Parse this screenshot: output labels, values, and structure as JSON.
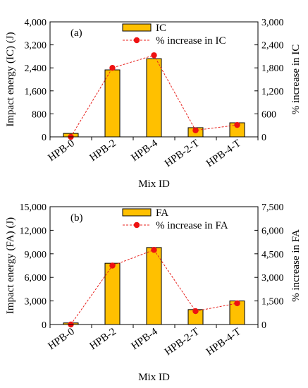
{
  "colors": {
    "bar_fill": "#FFC000",
    "bar_stroke": "#000000",
    "line": "#E8231F",
    "marker": "#EE1111",
    "axis": "#000000"
  },
  "chart_data": [
    {
      "type": "bar",
      "panel_label": "(a)",
      "categories": [
        "HPB-0",
        "HPB-2",
        "HPB-4",
        "HPB-2-T",
        "HPB-4-T"
      ],
      "xlabel": "Mix ID",
      "ylabel": "Impact energy (IC) (J)",
      "y2label": "% increase in IC",
      "ylim": [
        0,
        4000
      ],
      "y2lim": [
        0,
        3000
      ],
      "yticks": [
        "0",
        "800",
        "1,600",
        "2,400",
        "3,200",
        "4,000"
      ],
      "y2ticks": [
        "0",
        "600",
        "1,200",
        "1,800",
        "2,400",
        "3,000"
      ],
      "grid": false,
      "legend_position": "top-center",
      "series": [
        {
          "name": "IC",
          "kind": "bar",
          "axis": "left",
          "values": [
            120,
            2330,
            2720,
            320,
            490
          ]
        },
        {
          "name": "% increase in IC",
          "kind": "line-dashed-markers",
          "axis": "right",
          "values": [
            0,
            1800,
            2130,
            170,
            310
          ]
        }
      ]
    },
    {
      "type": "bar",
      "panel_label": "(b)",
      "categories": [
        "HPB-0",
        "HPB-2",
        "HPB-4",
        "HPB-2-T",
        "HPB-4-T"
      ],
      "xlabel": "Mix ID",
      "ylabel": "Impact energy (FA) (J)",
      "y2label": "% increase in FA",
      "ylim": [
        0,
        15000
      ],
      "y2lim": [
        0,
        7500
      ],
      "yticks": [
        "0",
        "3,000",
        "6,000",
        "9,000",
        "12,000",
        "15,000"
      ],
      "y2ticks": [
        "0",
        "1,500",
        "3,000",
        "4,500",
        "6,000",
        "7,500"
      ],
      "grid": false,
      "legend_position": "top-center",
      "series": [
        {
          "name": "FA",
          "kind": "bar",
          "axis": "left",
          "values": [
            200,
            7800,
            9800,
            1900,
            3000
          ]
        },
        {
          "name": "% increase in FA",
          "kind": "line-dashed-markers",
          "axis": "right",
          "values": [
            0,
            3750,
            4750,
            850,
            1350
          ]
        }
      ]
    }
  ]
}
